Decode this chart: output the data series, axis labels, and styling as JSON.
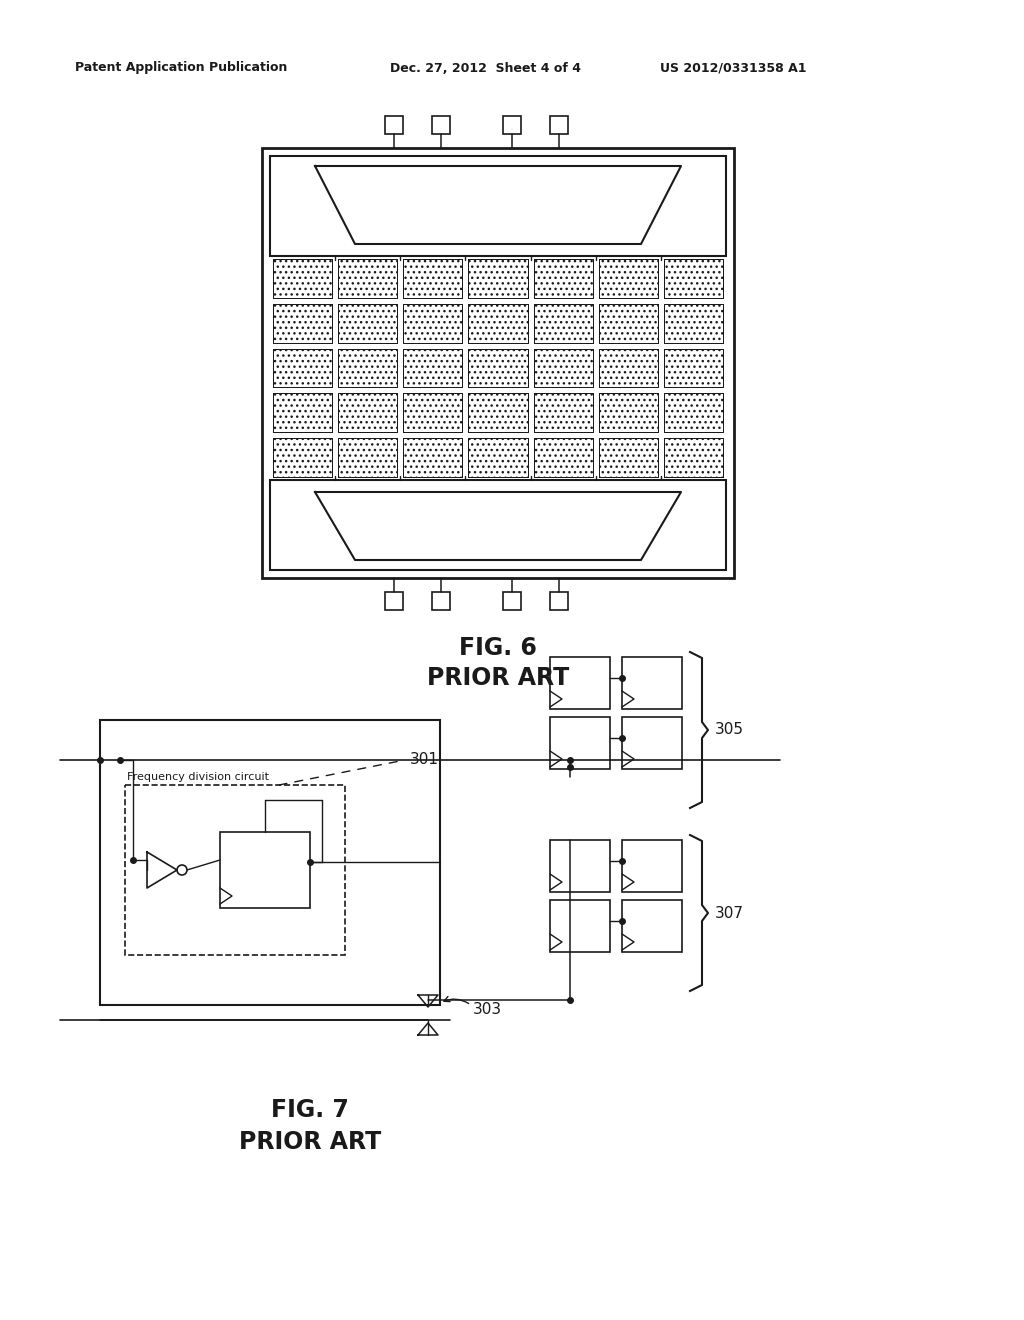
{
  "bg_color": "#ffffff",
  "line_color": "#1a1a1a",
  "header_left": "Patent Application Publication",
  "header_mid": "Dec. 27, 2012  Sheet 4 of 4",
  "header_right": "US 2012/0331358 A1",
  "fig6_caption": "FIG. 6",
  "fig6_sub": "PRIOR ART",
  "fig7_caption": "FIG. 7",
  "fig7_sub": "PRIOR ART",
  "label_301": "301",
  "label_303": "303",
  "label_305": "305",
  "label_307": "307",
  "freq_label": "Frequency division circuit"
}
